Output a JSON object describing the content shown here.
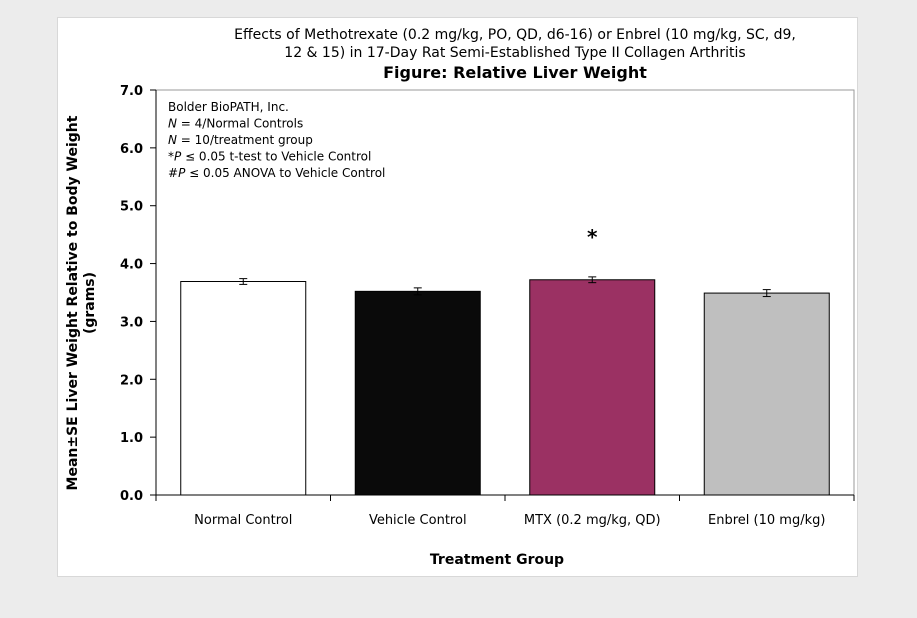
{
  "chart_data": {
    "type": "bar",
    "title_lines": [
      "Effects of Methotrexate (0.2 mg/kg, PO, QD, d6-16) or Enbrel (10 mg/kg, SC, d9,",
      "12 & 15) in 17-Day Rat Semi-Established Type II Collagen Arthritis"
    ],
    "title": "Figure: Relative Liver Weight",
    "xlabel": "Treatment Group",
    "ylabel_lines": [
      "Mean±SE Liver Weight Relative to Body Weight",
      "(grams)"
    ],
    "ylim": [
      0,
      7
    ],
    "yticks": [
      "0.0",
      "1.0",
      "2.0",
      "3.0",
      "4.0",
      "5.0",
      "6.0",
      "7.0"
    ],
    "categories": [
      "Normal Control",
      "Vehicle Control",
      "MTX (0.2 mg/kg, QD)",
      "Enbrel (10 mg/kg)"
    ],
    "values": [
      3.69,
      3.52,
      3.72,
      3.49
    ],
    "errors": [
      0.05,
      0.06,
      0.05,
      0.06
    ],
    "colors": [
      "#ffffff",
      "#0a0a0a",
      "#9b3163",
      "#bfbfbf"
    ],
    "significance": [
      "",
      "",
      "*",
      ""
    ],
    "grid": false,
    "legend": "none",
    "annotations": [
      {
        "parts": [
          {
            "t": "Bolder BioPATH, Inc.",
            "i": false
          }
        ]
      },
      {
        "parts": [
          {
            "t": "N",
            "i": true
          },
          {
            "t": " = 4/Normal Controls",
            "i": false
          }
        ]
      },
      {
        "parts": [
          {
            "t": "N",
            "i": true
          },
          {
            "t": " = 10/treatment group",
            "i": false
          }
        ]
      },
      {
        "parts": [
          {
            "t": "*",
            "i": false
          },
          {
            "t": "P",
            "i": true
          },
          {
            "t": " ≤ 0.05 t-test to Vehicle Control",
            "i": false
          }
        ]
      },
      {
        "parts": [
          {
            "t": "#",
            "i": false
          },
          {
            "t": "P",
            "i": true
          },
          {
            "t": " ≤ 0.05 ANOVA to Vehicle Control",
            "i": false
          }
        ]
      }
    ]
  }
}
